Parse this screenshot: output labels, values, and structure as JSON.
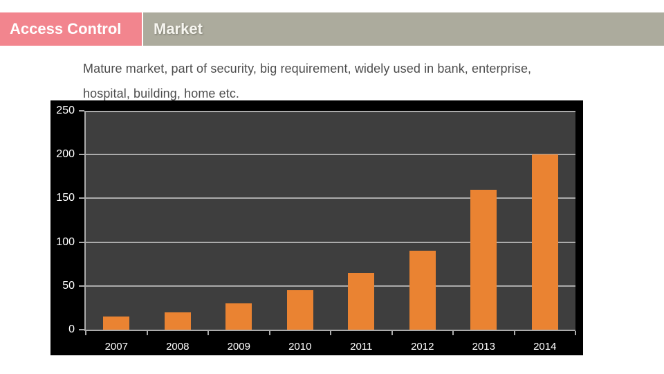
{
  "header": {
    "category_label": "Access Control",
    "section_label": "Market",
    "category_bg": "#F2858E",
    "section_bg": "#ACAB9D"
  },
  "description": {
    "line1": "Mature market, part of security, big requirement, widely used in bank, enterprise,",
    "line2": "hospital, building, home etc."
  },
  "chart_data": {
    "type": "bar",
    "title": "",
    "xlabel": "",
    "ylabel": "",
    "categories": [
      "2007",
      "2008",
      "2009",
      "2010",
      "2011",
      "2012",
      "2013",
      "2014"
    ],
    "values": [
      15,
      20,
      30,
      45,
      65,
      90,
      160,
      200
    ],
    "ylim": [
      0,
      250
    ],
    "yticks": [
      0,
      50,
      100,
      150,
      200,
      250
    ],
    "grid": true,
    "legend_position": "none",
    "colors": {
      "bar": "#EA8332",
      "plot_bg": "#3E3E3E",
      "chart_bg": "#000000",
      "gridline": "#ABABAB",
      "axis_label": "#FFFFFF"
    }
  }
}
